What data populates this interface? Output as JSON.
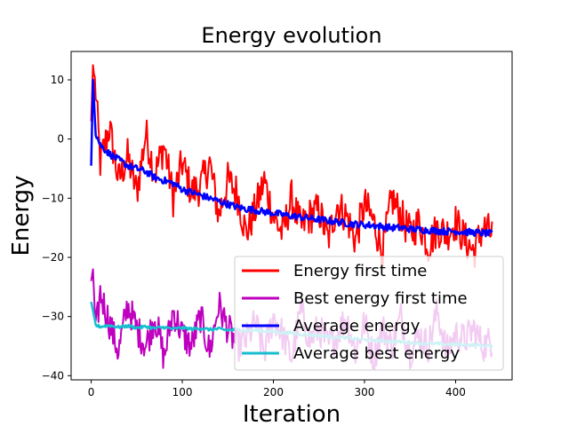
{
  "chart_data": {
    "type": "line",
    "title": "Energy evolution",
    "xlabel": "Iteration",
    "ylabel": "Energy",
    "xlim": [
      -22,
      462
    ],
    "ylim": [
      -40.7,
      14.8
    ],
    "xticks": [
      0,
      100,
      200,
      300,
      400
    ],
    "yticks": [
      -40,
      -30,
      -20,
      -10,
      0,
      10
    ],
    "grid": false,
    "legend_position": "lower-right",
    "n_iterations": 440,
    "series": [
      {
        "name": "Energy first time",
        "color": "#ff0000",
        "x": [
          0,
          2,
          5,
          10,
          20,
          30,
          40,
          50,
          60,
          70,
          80,
          90,
          100,
          110,
          120,
          130,
          140,
          150,
          160,
          170,
          180,
          190,
          200,
          210,
          220,
          230,
          240,
          250,
          260,
          270,
          280,
          290,
          300,
          310,
          320,
          330,
          340,
          350,
          360,
          370,
          380,
          390,
          400,
          410,
          420,
          430,
          440
        ],
        "values": [
          3,
          12.5,
          8,
          -4,
          2,
          -7,
          -3,
          -9,
          1,
          -6,
          -1,
          -10,
          -4,
          -9,
          -8,
          -4,
          -13,
          -7,
          -9,
          -16,
          -12,
          -7,
          -13,
          -16,
          -10,
          -15,
          -13,
          -12,
          -17,
          -11,
          -13,
          -17,
          -11,
          -14,
          -19,
          -10,
          -13,
          -16,
          -14,
          -18,
          -15,
          -16,
          -14,
          -17,
          -19,
          -15,
          -16
        ]
      },
      {
        "name": "Best energy first time",
        "color": "#bf00bf",
        "x": [
          0,
          2,
          5,
          10,
          20,
          30,
          40,
          50,
          60,
          70,
          80,
          90,
          100,
          110,
          120,
          130,
          140,
          150,
          160,
          170,
          180,
          190,
          200,
          210,
          220,
          230,
          240,
          250,
          260,
          270,
          280,
          290,
          300,
          310,
          320,
          330,
          340,
          350,
          360,
          370,
          380,
          390,
          400,
          410,
          420,
          430,
          440
        ],
        "values": [
          -24,
          -22,
          -33,
          -26,
          -31,
          -36,
          -28,
          -32,
          -35,
          -30,
          -37,
          -29,
          -33,
          -35,
          -30,
          -36,
          -28,
          -32,
          -35,
          -34,
          -31,
          -36,
          -30,
          -33,
          -37,
          -29,
          -34,
          -32,
          -35,
          -33,
          -30,
          -36,
          -31,
          -37,
          -32,
          -35,
          -30,
          -36,
          -33,
          -35,
          -29,
          -36,
          -33,
          -34,
          -32,
          -35,
          -34
        ]
      },
      {
        "name": "Average energy",
        "color": "#0000ff",
        "x": [
          0,
          2,
          5,
          10,
          20,
          30,
          40,
          50,
          60,
          70,
          80,
          90,
          100,
          110,
          120,
          130,
          140,
          150,
          160,
          170,
          180,
          190,
          200,
          210,
          220,
          230,
          240,
          250,
          260,
          270,
          280,
          290,
          300,
          310,
          320,
          330,
          340,
          350,
          360,
          370,
          380,
          390,
          400,
          410,
          420,
          430,
          440
        ],
        "values": [
          -4.5,
          10,
          1,
          -1,
          -2.5,
          -3.5,
          -4.5,
          -5,
          -5.5,
          -6.5,
          -7,
          -7.5,
          -8.5,
          -9,
          -9.5,
          -10,
          -10.5,
          -11,
          -11.5,
          -11.8,
          -12,
          -12.3,
          -12.5,
          -12.8,
          -13,
          -13.2,
          -13.4,
          -13.6,
          -13.8,
          -14,
          -14.2,
          -14.4,
          -14.5,
          -14.6,
          -14.8,
          -15,
          -15,
          -15.2,
          -15.3,
          -15.4,
          -15.5,
          -15.6,
          -15.6,
          -15.7,
          -15.8,
          -15.9,
          -16
        ]
      },
      {
        "name": "Average best energy",
        "color": "#17becf",
        "x": [
          0,
          2,
          5,
          10,
          20,
          30,
          40,
          50,
          60,
          70,
          80,
          90,
          100,
          110,
          120,
          130,
          140,
          150,
          160,
          170,
          180,
          190,
          200,
          210,
          220,
          230,
          240,
          250,
          260,
          270,
          280,
          290,
          300,
          310,
          320,
          330,
          340,
          350,
          360,
          370,
          380,
          390,
          400,
          410,
          420,
          430,
          440
        ],
        "values": [
          -27.5,
          -29,
          -31.5,
          -31.7,
          -31.5,
          -31.8,
          -31.6,
          -31.9,
          -31.7,
          -32,
          -31.8,
          -32.1,
          -31.9,
          -32.1,
          -32,
          -32.2,
          -32.1,
          -32.3,
          -32.2,
          -32.4,
          -32.3,
          -32.5,
          -32.5,
          -32.7,
          -32.8,
          -33,
          -33.1,
          -33.2,
          -33.4,
          -33.5,
          -33.6,
          -33.8,
          -33.9,
          -34,
          -34.1,
          -34.2,
          -34.3,
          -34.4,
          -34.5,
          -34.6,
          -34.6,
          -34.7,
          -34.7,
          -34.8,
          -34.8,
          -34.9,
          -35
        ]
      }
    ]
  }
}
